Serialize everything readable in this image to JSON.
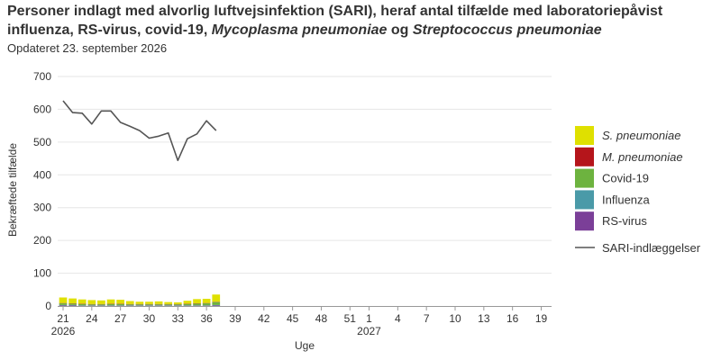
{
  "title": {
    "line1": "Personer indlagt med alvorlig luftvejsinfektion (SARI), heraf antal tilfælde med laboratoriepåvist",
    "line2_a": "influenza, RS-virus, covid-19, ",
    "line2_b": "Mycoplasma pneumoniae",
    "line2_c": " og ",
    "line2_d": "Streptococcus pneumoniae"
  },
  "subtitle": "Opdateret 23. september 2026",
  "chart_data": {
    "type": "bar",
    "ylabel": "Bekræftede tilfælde",
    "xlabel": "Uge",
    "ylim": [
      0,
      700
    ],
    "yticks": [
      0,
      100,
      200,
      300,
      400,
      500,
      600,
      700
    ],
    "grid": true,
    "legend_position": "right",
    "weeks": [
      21,
      22,
      23,
      24,
      25,
      26,
      27,
      28,
      29,
      30,
      31,
      32,
      33,
      34,
      35,
      36,
      37,
      38,
      39,
      40,
      41,
      42,
      43,
      44,
      45,
      46,
      47,
      48,
      49,
      50,
      51,
      52,
      1,
      2,
      3,
      4,
      5,
      6,
      7,
      8,
      9,
      10,
      11,
      12,
      13,
      14,
      15,
      16,
      17,
      18,
      19,
      20
    ],
    "xtick_labels": [
      "21",
      "24",
      "27",
      "30",
      "33",
      "36",
      "39",
      "42",
      "45",
      "48",
      "51",
      "1",
      "4",
      "7",
      "10",
      "13",
      "16",
      "19"
    ],
    "year_labels": [
      {
        "week_index": 0,
        "text": "2026"
      },
      {
        "week_index": 32,
        "text": "2027"
      }
    ],
    "series": [
      {
        "name": "RS-virus",
        "color": "#7b3f98",
        "values": [
          2,
          2,
          1,
          1,
          1,
          1,
          1,
          1,
          1,
          1,
          1,
          1,
          1,
          1,
          1,
          1,
          2
        ]
      },
      {
        "name": "Influenza",
        "color": "#4a9aa8",
        "values": [
          1,
          1,
          1,
          1,
          1,
          1,
          1,
          1,
          1,
          1,
          1,
          1,
          1,
          1,
          1,
          1,
          1
        ]
      },
      {
        "name": "Covid-19",
        "color": "#6db33f",
        "values": [
          5,
          4,
          4,
          3,
          3,
          4,
          4,
          3,
          3,
          3,
          3,
          3,
          3,
          4,
          5,
          6,
          9
        ]
      },
      {
        "name": "M. pneumoniae",
        "color": "#b5151b",
        "values": [
          1,
          1,
          1,
          1,
          1,
          1,
          1,
          1,
          1,
          1,
          1,
          1,
          1,
          1,
          1,
          1,
          1
        ]
      },
      {
        "name": "S. pneumoniae",
        "color": "#dfe000",
        "values": [
          17,
          15,
          13,
          12,
          11,
          13,
          12,
          9,
          7,
          7,
          8,
          6,
          5,
          9,
          13,
          13,
          22
        ]
      }
    ],
    "line": {
      "name": "SARI-indlæggelser",
      "color": "#555555",
      "values": [
        626,
        590,
        588,
        555,
        595,
        595,
        560,
        548,
        535,
        512,
        518,
        528,
        444,
        510,
        525,
        565,
        535
      ]
    }
  },
  "legend": [
    {
      "label": "S. pneumoniae",
      "italic": true,
      "color": "#dfe000",
      "kind": "box"
    },
    {
      "label": "M. pneumoniae",
      "italic": true,
      "color": "#b5151b",
      "kind": "box"
    },
    {
      "label": "Covid-19",
      "italic": false,
      "color": "#6db33f",
      "kind": "box"
    },
    {
      "label": "Influenza",
      "italic": false,
      "color": "#4a9aa8",
      "kind": "box"
    },
    {
      "label": "RS-virus",
      "italic": false,
      "color": "#7b3f98",
      "kind": "box"
    },
    {
      "label": "SARI-indlæggelser",
      "italic": false,
      "color": "#555555",
      "kind": "line"
    }
  ]
}
